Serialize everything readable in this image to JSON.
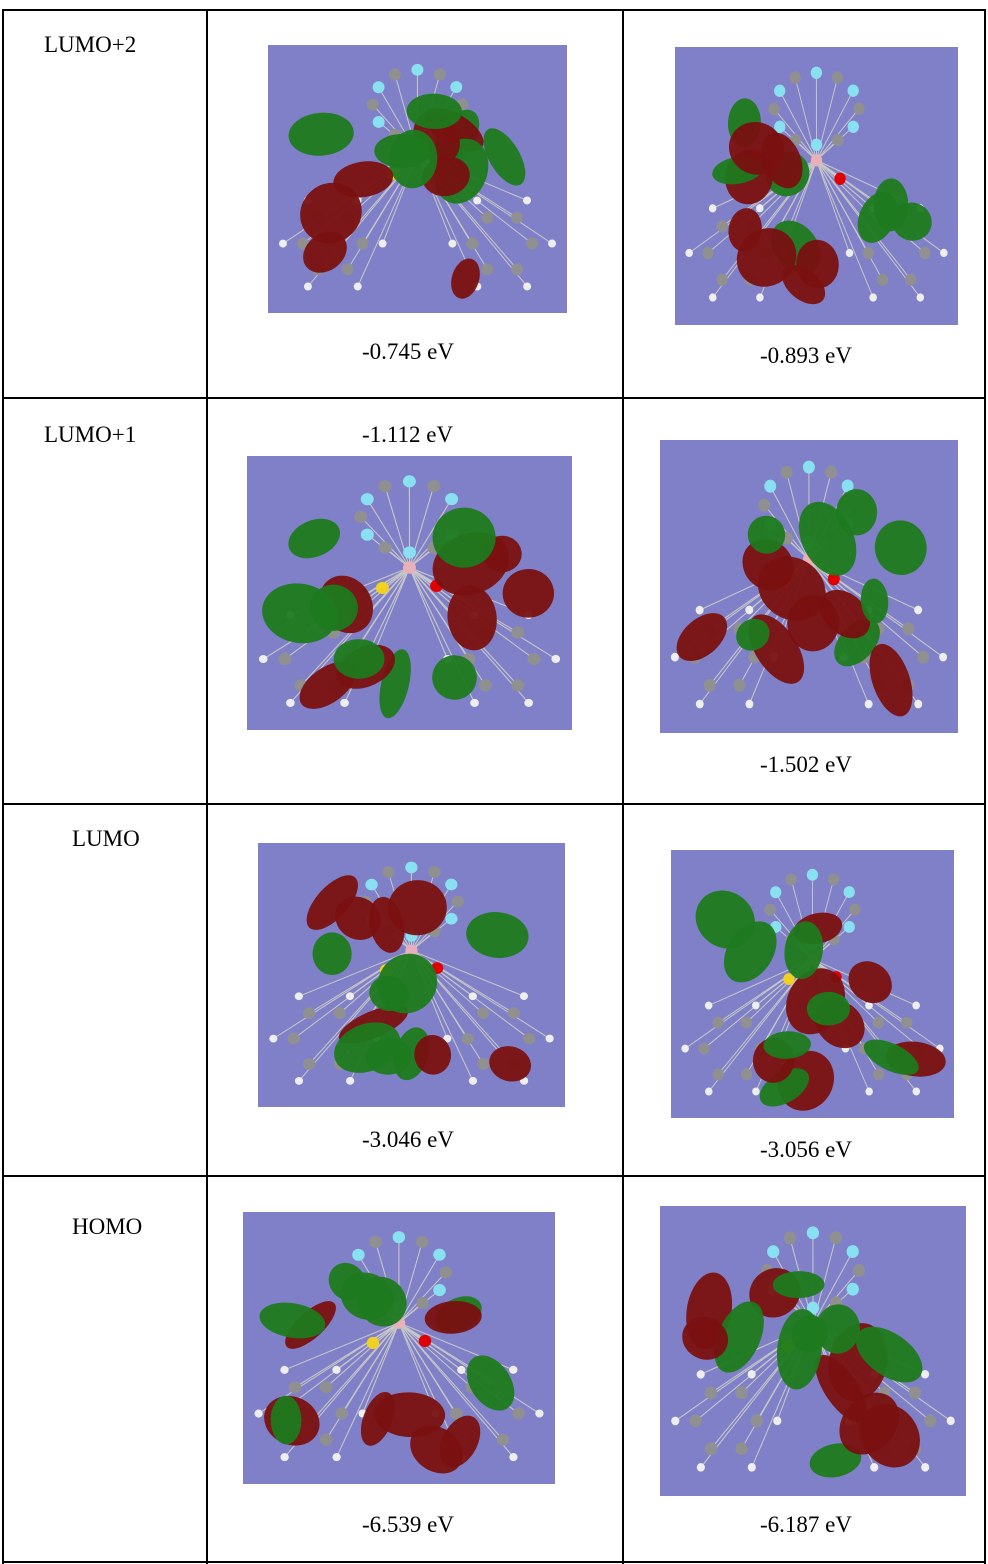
{
  "table": {
    "rows": [
      {
        "label": "LUMO+2",
        "cells": [
          "-0.745 eV",
          "-0.893 eV"
        ]
      },
      {
        "label": "LUMO+1",
        "cells": [
          "-1.112 eV",
          "-1.502 eV"
        ]
      },
      {
        "label": "LUMO",
        "cells": [
          "-3.046 eV",
          "-3.056 eV"
        ]
      },
      {
        "label": "HOMO",
        "cells": [
          "-6.539 eV",
          "-6.187 eV"
        ]
      }
    ]
  }
}
